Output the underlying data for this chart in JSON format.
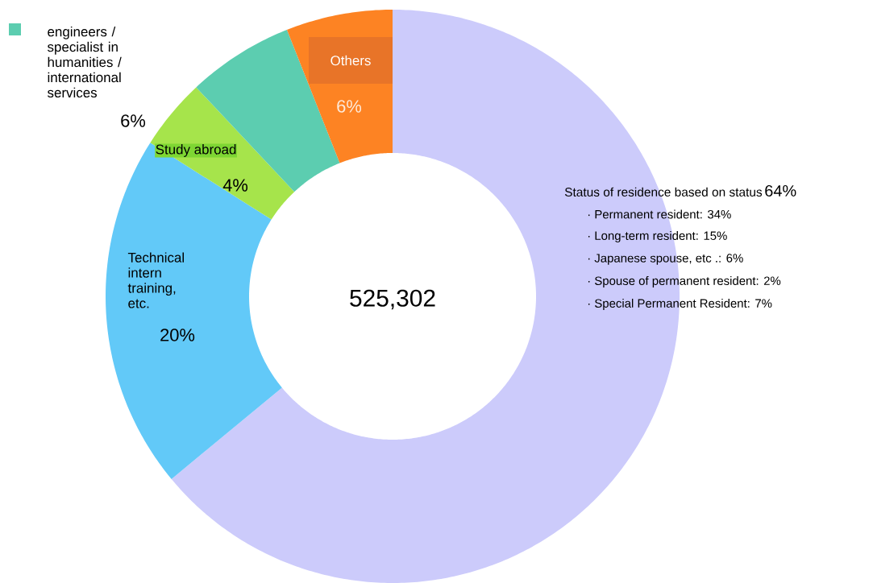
{
  "chart_data": {
    "type": "donut",
    "categories": [
      "Status of residence based on status",
      "Technical intern training, etc.",
      "Study abroad",
      "engineers / specialist in humanities / international services",
      "Others"
    ],
    "values": [
      64,
      20,
      4,
      6,
      6
    ],
    "value_labels": [
      "64%",
      "20%",
      "4%",
      "6%",
      "6%"
    ],
    "colors": [
      "#cccbfb",
      "#62c9f8",
      "#a6e44b",
      "#5ccdb0",
      "#fd8323"
    ],
    "annotations": [
      "525,302",
      "· Permanent resident: 34%",
      "· Long-term resident: 15%",
      "· Japanese spouse, etc .: 6%",
      "· Spouse of permanent resident: 2%",
      "· Special Permanent Resident: 7%"
    ]
  }
}
